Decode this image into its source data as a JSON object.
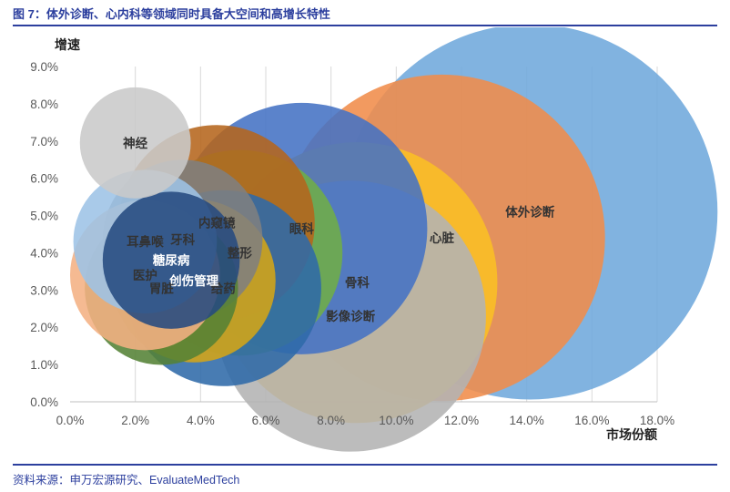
{
  "figure": {
    "title": "图 7：体外诊断、心内科等领域同时具备大空间和高增长特性",
    "source": "资料来源：申万宏源研究、EvaluateMedTech"
  },
  "chart_data": {
    "type": "bubble",
    "title": "",
    "xlabel": "市场份额",
    "ylabel": "增速",
    "xlim": [
      0,
      18
    ],
    "ylim": [
      0,
      9
    ],
    "x_ticks": [
      "0.0%",
      "2.0%",
      "4.0%",
      "6.0%",
      "8.0%",
      "10.0%",
      "12.0%",
      "14.0%",
      "16.0%",
      "18.0%"
    ],
    "y_ticks": [
      "0.0%",
      "1.0%",
      "2.0%",
      "3.0%",
      "4.0%",
      "5.0%",
      "6.0%",
      "7.0%",
      "8.0%",
      "9.0%"
    ],
    "grid": "vertical",
    "series": [
      {
        "name": "体外诊断",
        "x": 14.1,
        "y": 5.1,
        "size": 11.5,
        "color": "#6fa8dc"
      },
      {
        "name": "心脏",
        "x": 11.4,
        "y": 4.4,
        "size": 10.0,
        "color": "#f08c4a"
      },
      {
        "name": "影像诊断",
        "x": 8.6,
        "y": 2.3,
        "size": 8.3,
        "color": "#b3b3b3"
      },
      {
        "name": "骨科",
        "x": 8.8,
        "y": 3.2,
        "size": 8.6,
        "color": "#fbbf24"
      },
      {
        "name": "眼科",
        "x": 7.1,
        "y": 4.65,
        "size": 7.7,
        "color": "#4472c4"
      },
      {
        "name": "整形",
        "x": 5.2,
        "y": 4.0,
        "size": 6.3,
        "color": "#70ad47"
      },
      {
        "name": "内窥镜",
        "x": 4.5,
        "y": 4.8,
        "size": 6.0,
        "color": "#b5651d"
      },
      {
        "name": "给药",
        "x": 4.7,
        "y": 3.05,
        "size": 6.0,
        "color": "#2f6aa8"
      },
      {
        "name": "创伤管理",
        "x": 3.8,
        "y": 3.25,
        "size": 5.0,
        "color": "#d4a517"
      },
      {
        "name": "牙科",
        "x": 3.45,
        "y": 4.35,
        "size": 4.9,
        "color": "#7f7f7f"
      },
      {
        "name": "胃脏",
        "x": 2.8,
        "y": 3.05,
        "size": 4.7,
        "color": "#548235"
      },
      {
        "name": "糖尿病",
        "x": 3.1,
        "y": 3.8,
        "size": 4.2,
        "color": "#264a80"
      },
      {
        "name": "耳鼻喉",
        "x": 2.3,
        "y": 4.3,
        "size": 4.4,
        "color": "#9dc3e6"
      },
      {
        "name": "医护",
        "x": 2.3,
        "y": 3.4,
        "size": 4.6,
        "color": "#f4b183"
      },
      {
        "name": "神经",
        "x": 2.0,
        "y": 6.95,
        "size": 3.4,
        "color": "#c9c9c9"
      }
    ]
  }
}
